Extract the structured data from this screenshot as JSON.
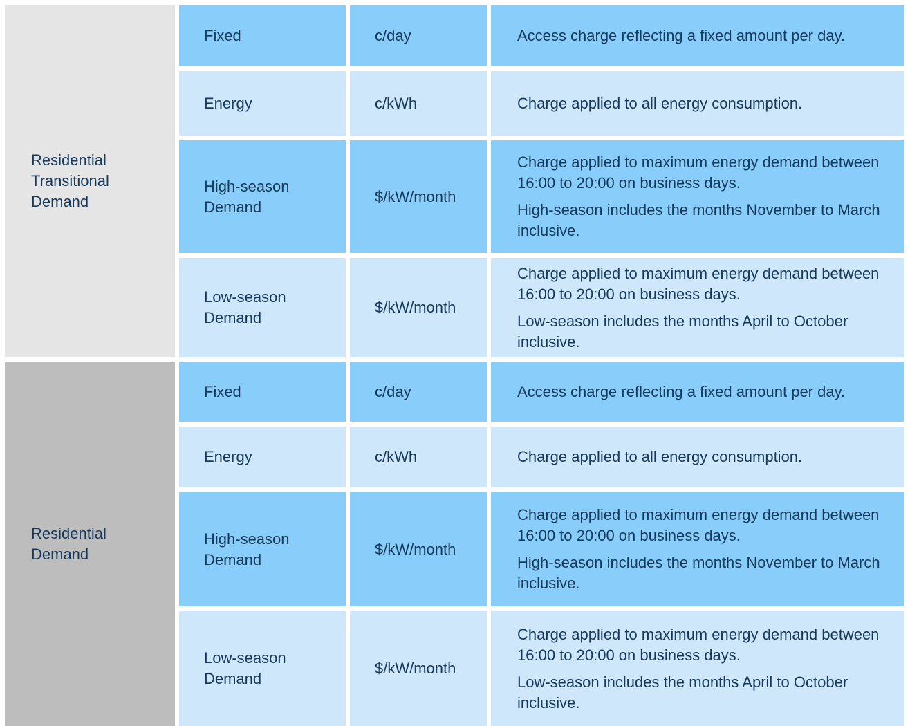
{
  "colors": {
    "row_blue": "#89CEFA",
    "row_light_blue": "#CEE7FB",
    "group1_gray": "#E5E5E5",
    "group2_gray": "#BDBDBD",
    "text_navy": "#16395C",
    "page_bg": "#FFFFFF"
  },
  "table": {
    "groups": [
      {
        "label": "Residential Transitional Demand",
        "rows": [
          {
            "charge": "Fixed",
            "unit": "c/day",
            "desc1": "Access charge reflecting a fixed amount per day.",
            "desc2": ""
          },
          {
            "charge": "Energy",
            "unit": "c/kWh",
            "desc1": "Charge applied to all energy consumption.",
            "desc2": ""
          },
          {
            "charge": "High-season Demand",
            "unit": "$/kW/month",
            "desc1": "Charge applied to maximum energy demand between 16:00 to 20:00 on business days.",
            "desc2": "High-season includes the months November to March inclusive."
          },
          {
            "charge": "Low-season Demand",
            "unit": "$/kW/month",
            "desc1": "Charge applied to maximum energy demand between 16:00 to 20:00 on business days.",
            "desc2": "Low-season includes the months April to October inclusive."
          }
        ]
      },
      {
        "label": "Residential Demand",
        "rows": [
          {
            "charge": "Fixed",
            "unit": "c/day",
            "desc1": "Access charge reflecting a fixed amount per day.",
            "desc2": ""
          },
          {
            "charge": "Energy",
            "unit": "c/kWh",
            "desc1": "Charge applied to all energy consumption.",
            "desc2": ""
          },
          {
            "charge": "High-season Demand",
            "unit": "$/kW/month",
            "desc1": "Charge applied to maximum energy demand between 16:00 to 20:00 on business days.",
            "desc2": "High-season includes the months November to March inclusive."
          },
          {
            "charge": "Low-season Demand",
            "unit": "$/kW/month",
            "desc1": "Charge applied to maximum energy demand between 16:00 to 20:00 on business days.",
            "desc2": "Low-season includes the months April to October inclusive."
          }
        ]
      }
    ]
  }
}
